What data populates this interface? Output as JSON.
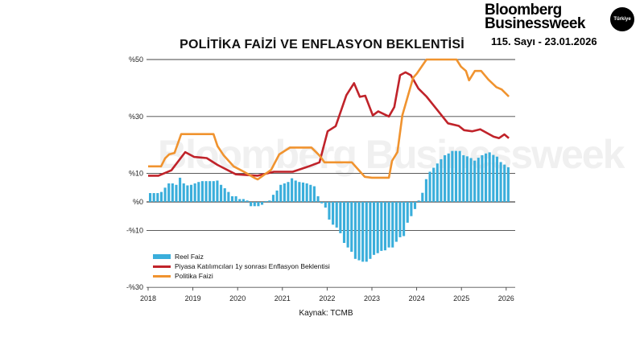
{
  "header": {
    "brand_line1": "Bloomberg",
    "brand_line2": "Businessweek",
    "brand_badge": "Türkiye",
    "issue": "115. Sayı - 23.01.2026"
  },
  "watermark": "Bloomberg Businessweek",
  "source": "Kaynak: TCMB",
  "chart_data": {
    "type": "bar+line",
    "title": "POLİTİKA FAİZİ VE ENFLASYON BEKLENTİSİ",
    "ylim": [
      -30,
      50
    ],
    "xlim": [
      2018,
      2026.2
    ],
    "y_ticks": [
      {
        "value": 50,
        "label": "%50"
      },
      {
        "value": 30,
        "label": "%30"
      },
      {
        "value": 10,
        "label": "%10"
      },
      {
        "value": 0,
        "label": "%0"
      },
      {
        "value": -10,
        "label": "-%10"
      },
      {
        "value": -30,
        "label": "-%30"
      }
    ],
    "x_ticks": [
      "2018",
      "2019",
      "2020",
      "2021",
      "2022",
      "2023",
      "2024",
      "2025",
      "2026"
    ],
    "grid": "horizontal",
    "legend_position": "bottom-left",
    "colors": {
      "bars": "#3aaedb",
      "expectation": "#c0232a",
      "policy": "#f0932f"
    },
    "series": [
      {
        "name": "Reel Faiz",
        "type": "bar",
        "start": "2018-01",
        "frequency": "monthly",
        "values": [
          3.1,
          3.1,
          3.1,
          3.5,
          5,
          6.5,
          6.5,
          6,
          8.5,
          6.5,
          5.8,
          6,
          6.5,
          7,
          7.3,
          7.3,
          7.3,
          7.3,
          7.5,
          6,
          4.8,
          3.5,
          2,
          2,
          1,
          1,
          0.5,
          -1.5,
          -1.5,
          -1.5,
          -1,
          0.3,
          0.5,
          2.5,
          4,
          6,
          6.5,
          7,
          8.3,
          7.5,
          7,
          6.8,
          6.5,
          6,
          5.5,
          2,
          -0.5,
          -2,
          -6.2,
          -8,
          -9,
          -11,
          -14.4,
          -16,
          -17.5,
          -20,
          -20.5,
          -21,
          -21,
          -20,
          -18.6,
          -18,
          -17.2,
          -17,
          -16,
          -16,
          -14,
          -12.4,
          -12,
          -7.3,
          -5,
          -2.5,
          0.5,
          3.2,
          8,
          10.6,
          12,
          13.5,
          15,
          16.4,
          17,
          17.9,
          17.9,
          17.9,
          16.4,
          16,
          15.4,
          14.5,
          15.5,
          16.4,
          17,
          17.4,
          16.5,
          15.9,
          14,
          13.1,
          12.2
        ]
      },
      {
        "name": "Piyasa Katılımcıları 1y sonrası Enflasyon Beklentisi",
        "type": "line",
        "points": [
          [
            2018.0,
            9.2
          ],
          [
            2018.23,
            9.2
          ],
          [
            2018.52,
            11.1
          ],
          [
            2018.83,
            17.5
          ],
          [
            2019.03,
            15.8
          ],
          [
            2019.31,
            15.4
          ],
          [
            2019.55,
            13
          ],
          [
            2019.96,
            9.7
          ],
          [
            2020.45,
            9.2
          ],
          [
            2020.81,
            10.6
          ],
          [
            2021.23,
            10.6
          ],
          [
            2021.59,
            12.5
          ],
          [
            2021.83,
            13.9
          ],
          [
            2022.01,
            24.8
          ],
          [
            2022.19,
            26.6
          ],
          [
            2022.43,
            37.5
          ],
          [
            2022.6,
            41.7
          ],
          [
            2022.73,
            36.9
          ],
          [
            2022.85,
            37.3
          ],
          [
            2023.02,
            30.4
          ],
          [
            2023.14,
            31.8
          ],
          [
            2023.38,
            30
          ],
          [
            2023.5,
            33.3
          ],
          [
            2023.63,
            44.5
          ],
          [
            2023.75,
            45.5
          ],
          [
            2023.87,
            44.5
          ],
          [
            2024.04,
            39.8
          ],
          [
            2024.22,
            37
          ],
          [
            2024.46,
            32.3
          ],
          [
            2024.7,
            27.6
          ],
          [
            2024.94,
            26.7
          ],
          [
            2025.06,
            25.2
          ],
          [
            2025.24,
            24.8
          ],
          [
            2025.42,
            25.5
          ],
          [
            2025.72,
            22.9
          ],
          [
            2025.84,
            22.4
          ],
          [
            2025.96,
            23.7
          ],
          [
            2026.06,
            22.4
          ]
        ]
      },
      {
        "name": "Politika Faizi",
        "type": "line",
        "points": [
          [
            2018.0,
            12.5
          ],
          [
            2018.29,
            12.5
          ],
          [
            2018.38,
            15.3
          ],
          [
            2018.47,
            16.7
          ],
          [
            2018.59,
            17.2
          ],
          [
            2018.74,
            23.8
          ],
          [
            2019.46,
            23.8
          ],
          [
            2019.55,
            19.6
          ],
          [
            2019.69,
            16.3
          ],
          [
            2019.91,
            12.5
          ],
          [
            2020.14,
            10.6
          ],
          [
            2020.39,
            8.3
          ],
          [
            2020.45,
            7.9
          ],
          [
            2020.75,
            11.3
          ],
          [
            2020.93,
            16.7
          ],
          [
            2021.17,
            19.1
          ],
          [
            2021.65,
            19.1
          ],
          [
            2021.83,
            16.3
          ],
          [
            2021.94,
            13.9
          ],
          [
            2022.55,
            13.9
          ],
          [
            2022.84,
            8.8
          ],
          [
            2023.0,
            8.5
          ],
          [
            2023.38,
            8.5
          ],
          [
            2023.45,
            14.4
          ],
          [
            2023.57,
            17.5
          ],
          [
            2023.68,
            30.4
          ],
          [
            2023.92,
            43.6
          ],
          [
            2024.0,
            45
          ],
          [
            2024.22,
            50
          ],
          [
            2024.89,
            50
          ],
          [
            2024.99,
            47.5
          ],
          [
            2025.1,
            46
          ],
          [
            2025.17,
            42.7
          ],
          [
            2025.3,
            46
          ],
          [
            2025.44,
            46
          ],
          [
            2025.6,
            43
          ],
          [
            2025.78,
            40.3
          ],
          [
            2025.9,
            39.5
          ],
          [
            2026.06,
            37
          ]
        ]
      }
    ]
  }
}
